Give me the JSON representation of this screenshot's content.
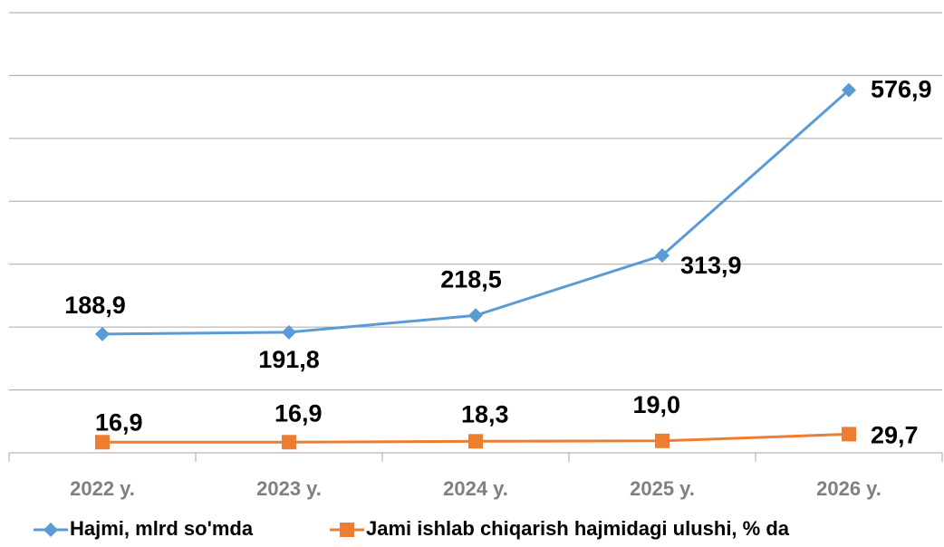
{
  "chart_data": {
    "type": "line",
    "categories": [
      "2022 y.",
      "2023 y.",
      "2024 y.",
      "2025 y.",
      "2026 y."
    ],
    "series": [
      {
        "name": "Hajmi, mlrd so'mda",
        "color": "#5b9bd5",
        "marker": "diamond",
        "values": [
          188.9,
          191.8,
          218.5,
          313.9,
          576.9
        ],
        "value_labels": [
          "188,9",
          "191,8",
          "218,5",
          "313,9",
          "576,9"
        ]
      },
      {
        "name": "Jami ishlab chiqarish hajmidagi ulushi, % da",
        "color": "#ed7d31",
        "marker": "square",
        "values": [
          16.9,
          16.9,
          18.3,
          19.0,
          29.7
        ],
        "value_labels": [
          "16,9",
          "16,9",
          "18,3",
          "19,0",
          "29,7"
        ]
      }
    ],
    "ylim": [
      0,
      700
    ],
    "yticks": [
      0,
      100,
      200,
      300,
      400,
      500,
      600,
      700
    ],
    "grid": true,
    "legend": "bottom"
  }
}
